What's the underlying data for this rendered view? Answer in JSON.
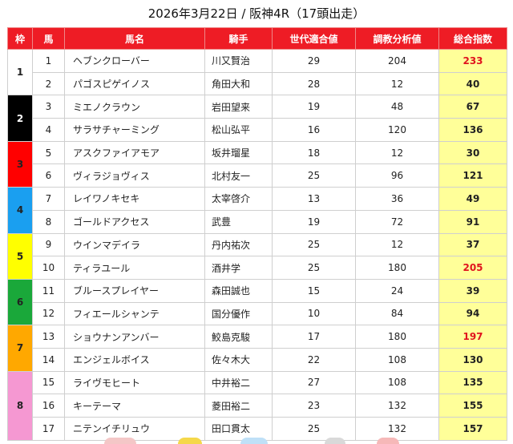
{
  "title": "2026年3月22日 / 阪神4R（17頭出走）",
  "headers": {
    "waku": "枠",
    "uma": "馬",
    "name": "馬名",
    "jockey": "騎手",
    "generation": "世代適合値",
    "training": "調教分析値",
    "total": "総合指数"
  },
  "frames": [
    {
      "label": "1",
      "color": "#ffffff",
      "text_color": "#222222"
    },
    {
      "label": "2",
      "color": "#000000",
      "text_color": "#ffffff"
    },
    {
      "label": "3",
      "color": "#ff0000",
      "text_color": "#222222"
    },
    {
      "label": "4",
      "color": "#1a9ff0",
      "text_color": "#222222"
    },
    {
      "label": "5",
      "color": "#ffff00",
      "text_color": "#222222"
    },
    {
      "label": "6",
      "color": "#1aa83a",
      "text_color": "#222222"
    },
    {
      "label": "7",
      "color": "#ffa800",
      "text_color": "#222222"
    },
    {
      "label": "8",
      "color": "#f598d2",
      "text_color": "#222222"
    }
  ],
  "rows": [
    {
      "waku": "1",
      "uma": "1",
      "name": "ヘブンクローバー",
      "jockey": "川又賢治",
      "generation": "29",
      "training": "204",
      "total": "233",
      "highlight": true
    },
    {
      "waku": "1",
      "uma": "2",
      "name": "パゴスピゲイノス",
      "jockey": "角田大和",
      "generation": "28",
      "training": "12",
      "total": "40",
      "highlight": false
    },
    {
      "waku": "2",
      "uma": "3",
      "name": "ミエノクラウン",
      "jockey": "岩田望来",
      "generation": "19",
      "training": "48",
      "total": "67",
      "highlight": false
    },
    {
      "waku": "2",
      "uma": "4",
      "name": "サラサチャーミング",
      "jockey": "松山弘平",
      "generation": "16",
      "training": "120",
      "total": "136",
      "highlight": false
    },
    {
      "waku": "3",
      "uma": "5",
      "name": "アスクファイアモア",
      "jockey": "坂井瑠星",
      "generation": "18",
      "training": "12",
      "total": "30",
      "highlight": false
    },
    {
      "waku": "3",
      "uma": "6",
      "name": "ヴィラジョヴィス",
      "jockey": "北村友一",
      "generation": "25",
      "training": "96",
      "total": "121",
      "highlight": false
    },
    {
      "waku": "4",
      "uma": "7",
      "name": "レイワノキセキ",
      "jockey": "太宰啓介",
      "generation": "13",
      "training": "36",
      "total": "49",
      "highlight": false
    },
    {
      "waku": "4",
      "uma": "8",
      "name": "ゴールドアクセス",
      "jockey": "武豊",
      "generation": "19",
      "training": "72",
      "total": "91",
      "highlight": false
    },
    {
      "waku": "5",
      "uma": "9",
      "name": "ウインマデイラ",
      "jockey": "丹内祐次",
      "generation": "25",
      "training": "12",
      "total": "37",
      "highlight": false
    },
    {
      "waku": "5",
      "uma": "10",
      "name": "ティラユール",
      "jockey": "酒井学",
      "generation": "25",
      "training": "180",
      "total": "205",
      "highlight": true
    },
    {
      "waku": "6",
      "uma": "11",
      "name": "ブルースプレイヤー",
      "jockey": "森田誠也",
      "generation": "15",
      "training": "24",
      "total": "39",
      "highlight": false
    },
    {
      "waku": "6",
      "uma": "12",
      "name": "フィエールシャンテ",
      "jockey": "国分優作",
      "generation": "10",
      "training": "84",
      "total": "94",
      "highlight": false
    },
    {
      "waku": "7",
      "uma": "13",
      "name": "ショウナンアンバー",
      "jockey": "鮫島克駿",
      "generation": "17",
      "training": "180",
      "total": "197",
      "highlight": true
    },
    {
      "waku": "7",
      "uma": "14",
      "name": "エンジェルボイス",
      "jockey": "佐々木大",
      "generation": "22",
      "training": "108",
      "total": "130",
      "highlight": false
    },
    {
      "waku": "8",
      "uma": "15",
      "name": "ライヴモヒート",
      "jockey": "中井裕二",
      "generation": "27",
      "training": "108",
      "total": "135",
      "highlight": false
    },
    {
      "waku": "8",
      "uma": "16",
      "name": "キーテーマ",
      "jockey": "菱田裕二",
      "generation": "23",
      "training": "132",
      "total": "155",
      "highlight": false
    },
    {
      "waku": "8",
      "uma": "17",
      "name": "ニテンイチリュウ",
      "jockey": "田口貫太",
      "generation": "25",
      "training": "132",
      "total": "157",
      "highlight": false
    }
  ],
  "colors": {
    "header_bg": "#ee1c25",
    "total_bg": "#ffff99",
    "highlight_text": "#e0141e"
  }
}
